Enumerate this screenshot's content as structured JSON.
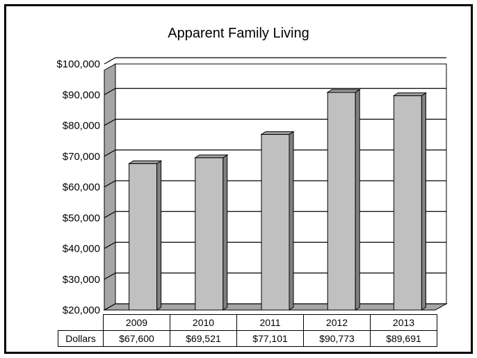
{
  "chart_data": {
    "type": "bar",
    "title": "Apparent Family Living",
    "categories": [
      "2009",
      "2010",
      "2011",
      "2012",
      "2013"
    ],
    "series": [
      {
        "name": "Dollars",
        "values": [
          67600,
          69521,
          77101,
          90773,
          89691
        ]
      }
    ],
    "value_labels": [
      "$67,600",
      "$69,521",
      "$77,101",
      "$90,773",
      "$89,691"
    ],
    "yticks": [
      "$20,000",
      "$30,000",
      "$40,000",
      "$50,000",
      "$60,000",
      "$70,000",
      "$80,000",
      "$90,000",
      "$100,000"
    ],
    "ylim": [
      20000,
      100000
    ],
    "grid": true,
    "legend": "data-table-below",
    "colors": {
      "bar_front": "#c0c0c0",
      "bar_side": "#808080",
      "bar_top": "#a0a0a0",
      "wall": "#a6a6a6"
    }
  }
}
